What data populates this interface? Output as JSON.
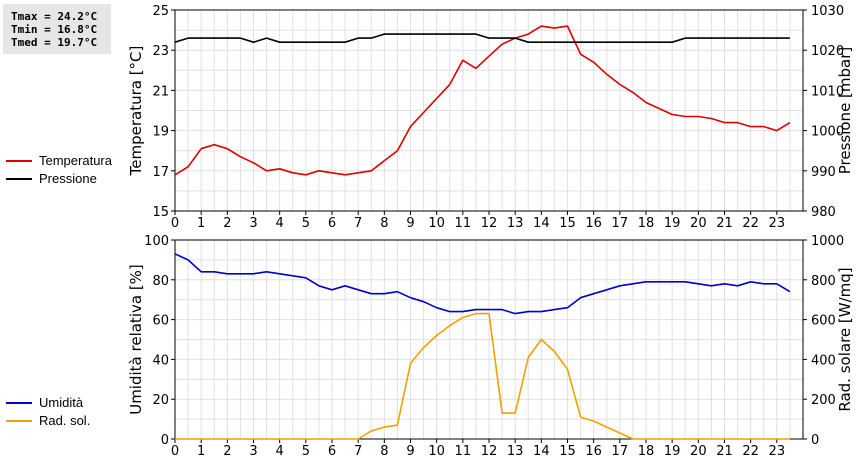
{
  "stats": {
    "tmax": "Tmax = 24.2°C",
    "tmin": "Tmin = 16.8°C",
    "tmed": "Tmed = 19.7°C"
  },
  "legend_top": [
    {
      "label": "Temperatura",
      "color": "#dd0000"
    },
    {
      "label": "Pressione",
      "color": "#000000"
    }
  ],
  "legend_bottom": [
    {
      "label": "Umidità",
      "color": "#0000cc"
    },
    {
      "label": "Rad. sol.",
      "color": "#f5a000"
    }
  ],
  "chart_data": [
    {
      "type": "line",
      "xlim": [
        0,
        24
      ],
      "x_ticks": [
        0,
        1,
        2,
        3,
        4,
        5,
        6,
        7,
        8,
        9,
        10,
        11,
        12,
        13,
        14,
        15,
        16,
        17,
        18,
        19,
        20,
        21,
        22,
        23
      ],
      "ylabel_left": "Temperatura [°C]",
      "ylim_left": [
        15,
        25
      ],
      "y_ticks_left": [
        15,
        17,
        19,
        21,
        23,
        25
      ],
      "ylabel_right": "Pressione [mbar]",
      "ylim_right": [
        980,
        1030
      ],
      "y_ticks_right": [
        980,
        990,
        1000,
        1010,
        1020,
        1030
      ],
      "grid": true,
      "series": [
        {
          "name": "Temperatura",
          "axis": "left",
          "color": "#dd0000",
          "x": [
            0,
            0.5,
            1,
            1.5,
            2,
            2.5,
            3,
            3.5,
            4,
            4.5,
            5,
            5.5,
            6,
            6.5,
            7,
            7.5,
            8,
            8.5,
            9,
            9.5,
            10,
            10.5,
            11,
            11.5,
            12,
            12.5,
            13,
            13.5,
            14,
            14.5,
            15,
            15.5,
            16,
            16.5,
            17,
            17.5,
            18,
            18.5,
            19,
            19.5,
            20,
            20.5,
            21,
            21.5,
            22,
            22.5,
            23,
            23.5
          ],
          "y": [
            16.8,
            17.2,
            18.1,
            18.3,
            18.1,
            17.7,
            17.4,
            17.0,
            17.1,
            16.9,
            16.8,
            17.0,
            16.9,
            16.8,
            16.9,
            17.0,
            17.5,
            18.0,
            19.2,
            19.9,
            20.6,
            21.3,
            22.5,
            22.1,
            22.7,
            23.3,
            23.6,
            23.8,
            24.2,
            24.1,
            24.2,
            22.8,
            22.4,
            21.8,
            21.3,
            20.9,
            20.4,
            20.1,
            19.8,
            19.7,
            19.7,
            19.6,
            19.4,
            19.4,
            19.2,
            19.2,
            19.0,
            19.4
          ]
        },
        {
          "name": "Pressione",
          "axis": "right",
          "color": "#000000",
          "x": [
            0,
            0.5,
            1,
            1.5,
            2,
            2.5,
            3,
            3.5,
            4,
            4.5,
            5,
            5.5,
            6,
            6.5,
            7,
            7.5,
            8,
            8.5,
            9,
            9.5,
            10,
            10.5,
            11,
            11.5,
            12,
            12.5,
            13,
            13.5,
            14,
            14.5,
            15,
            15.5,
            16,
            16.5,
            17,
            17.5,
            18,
            18.5,
            19,
            19.5,
            20,
            20.5,
            21,
            21.5,
            22,
            22.5,
            23,
            23.5
          ],
          "y": [
            1022,
            1023,
            1023,
            1023,
            1023,
            1023,
            1022,
            1023,
            1022,
            1022,
            1022,
            1022,
            1022,
            1022,
            1023,
            1023,
            1024,
            1024,
            1024,
            1024,
            1024,
            1024,
            1024,
            1024,
            1023,
            1023,
            1023,
            1022,
            1022,
            1022,
            1022,
            1022,
            1022,
            1022,
            1022,
            1022,
            1022,
            1022,
            1022,
            1023,
            1023,
            1023,
            1023,
            1023,
            1023,
            1023,
            1023,
            1023
          ]
        }
      ]
    },
    {
      "type": "line",
      "xlim": [
        0,
        24
      ],
      "x_ticks": [
        0,
        1,
        2,
        3,
        4,
        5,
        6,
        7,
        8,
        9,
        10,
        11,
        12,
        13,
        14,
        15,
        16,
        17,
        18,
        19,
        20,
        21,
        22,
        23
      ],
      "ylabel_left": "Umidità relativa [%]",
      "ylim_left": [
        0,
        100
      ],
      "y_ticks_left": [
        0,
        20,
        40,
        60,
        80,
        100
      ],
      "ylabel_right": "Rad. solare [W/mq]",
      "ylim_right": [
        0,
        1000
      ],
      "y_ticks_right": [
        0,
        200,
        400,
        600,
        800,
        1000
      ],
      "grid": true,
      "series": [
        {
          "name": "Umidità",
          "axis": "left",
          "color": "#0000cc",
          "x": [
            0,
            0.5,
            1,
            1.5,
            2,
            2.5,
            3,
            3.5,
            4,
            4.5,
            5,
            5.5,
            6,
            6.5,
            7,
            7.5,
            8,
            8.5,
            9,
            9.5,
            10,
            10.5,
            11,
            11.5,
            12,
            12.5,
            13,
            13.5,
            14,
            14.5,
            15,
            15.5,
            16,
            16.5,
            17,
            17.5,
            18,
            18.5,
            19,
            19.5,
            20,
            20.5,
            21,
            21.5,
            22,
            22.5,
            23,
            23.5
          ],
          "y": [
            93,
            90,
            84,
            84,
            83,
            83,
            83,
            84,
            83,
            82,
            81,
            77,
            75,
            77,
            75,
            73,
            73,
            74,
            71,
            69,
            66,
            64,
            64,
            65,
            65,
            65,
            63,
            64,
            64,
            65,
            66,
            71,
            73,
            75,
            77,
            78,
            79,
            79,
            79,
            79,
            78,
            77,
            78,
            77,
            79,
            78,
            78,
            74
          ]
        },
        {
          "name": "Rad. sol.",
          "axis": "right",
          "color": "#f5a000",
          "x": [
            0,
            1,
            2,
            3,
            4,
            5,
            6,
            7,
            7.5,
            8,
            8.5,
            9,
            9.5,
            10,
            10.5,
            11,
            11.5,
            12,
            12.5,
            13,
            13.5,
            14,
            14.5,
            15,
            15.5,
            16,
            16.5,
            17,
            17.5,
            18,
            19,
            20,
            21,
            22,
            23,
            23.5
          ],
          "y": [
            0,
            0,
            0,
            0,
            0,
            0,
            0,
            0,
            40,
            60,
            70,
            380,
            460,
            520,
            570,
            610,
            630,
            630,
            130,
            130,
            410,
            500,
            440,
            350,
            110,
            90,
            60,
            30,
            0,
            0,
            0,
            0,
            0,
            0,
            0,
            0
          ]
        }
      ]
    }
  ]
}
